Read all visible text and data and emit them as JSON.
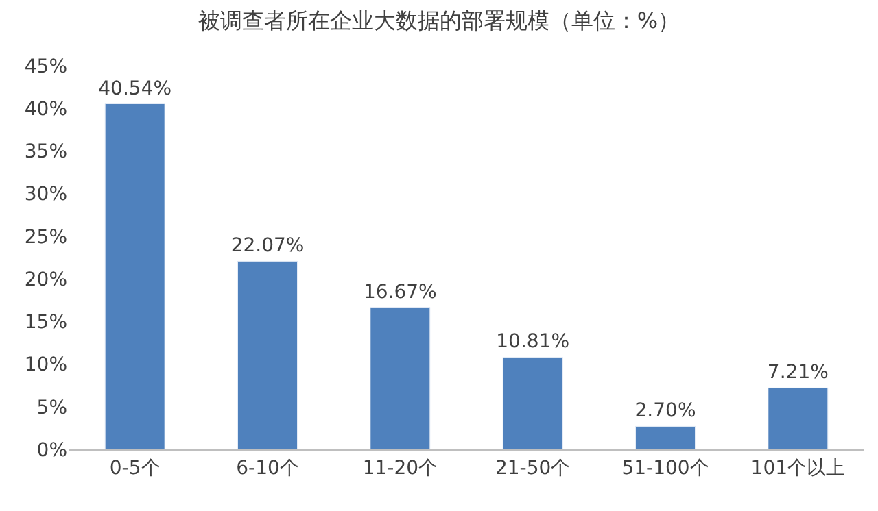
{
  "chart_data": {
    "type": "bar",
    "title": "被调查者所在企业大数据的部署规模（单位：%）",
    "categories": [
      "0-5个",
      "6-10个",
      "11-20个",
      "21-50个",
      "51-100个",
      "101个以上"
    ],
    "values": [
      40.54,
      22.07,
      16.67,
      10.81,
      2.7,
      7.21
    ],
    "value_labels": [
      "40.54%",
      "22.07%",
      "16.67%",
      "10.81%",
      "2.70%",
      "7.21%"
    ],
    "color": "#4f81bd",
    "ylim": [
      0,
      45
    ],
    "yticks": [
      {
        "value": 0,
        "label": "0%"
      },
      {
        "value": 5,
        "label": "5%"
      },
      {
        "value": 10,
        "label": "10%"
      },
      {
        "value": 15,
        "label": "15%"
      },
      {
        "value": 20,
        "label": "20%"
      },
      {
        "value": 25,
        "label": "25%"
      },
      {
        "value": 30,
        "label": "30%"
      },
      {
        "value": 35,
        "label": "35%"
      },
      {
        "value": 40,
        "label": "40%"
      },
      {
        "value": 45,
        "label": "45%"
      }
    ]
  }
}
